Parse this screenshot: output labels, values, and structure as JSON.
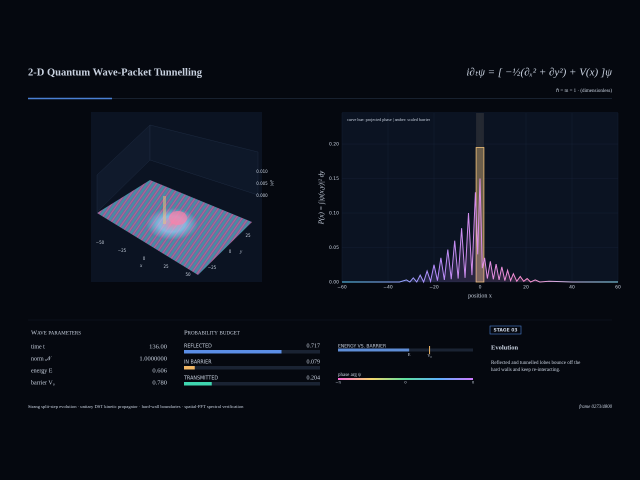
{
  "header": {
    "title": "2-D Quantum Wave-Packet Tunnelling",
    "equation": "i∂ₜψ = [ −½(∂ₓ² + ∂y²) + V(x) ]ψ",
    "units": "ℏ = m = 1 · (dimensionless)"
  },
  "surface": {
    "x_label": "x",
    "y_label": "y",
    "z_label": "|ψ|²",
    "x_ticks": [
      "−50",
      "−25",
      "0",
      "25",
      "50"
    ],
    "y_ticks": [
      "−25",
      "0",
      "25"
    ],
    "z_ticks": [
      "0.010",
      "0.005",
      "0.000"
    ]
  },
  "chart_data": {
    "type": "line",
    "annotation": "curve hue: projected phase  |  amber: scaled barrier",
    "y_label": "P(x) = ∫|ψ(x,y)|² dy",
    "x_label": "position x",
    "x": [
      -60,
      -35,
      -32,
      -30.5,
      -29,
      -27.5,
      -26,
      -24.5,
      -23,
      -21.5,
      -20,
      -18.5,
      -17,
      -15.5,
      -14,
      -12.5,
      -11,
      -9.5,
      -8,
      -6.5,
      -5,
      -3.5,
      -2,
      -1,
      0,
      1,
      2,
      3.2,
      4.5,
      5.8,
      7,
      8.3,
      9.5,
      10.8,
      12,
      13.3,
      14.5,
      16,
      17.5,
      19,
      20.5,
      22,
      24,
      26,
      30,
      40,
      60
    ],
    "values": [
      0,
      0,
      0.003,
      0,
      0.006,
      0,
      0.01,
      0,
      0.016,
      0.001,
      0.025,
      0.002,
      0.035,
      0.003,
      0.047,
      0.004,
      0.06,
      0.005,
      0.078,
      0.006,
      0.1,
      0.01,
      0.13,
      0.04,
      0.15,
      0.02,
      0.035,
      0.005,
      0.03,
      0.004,
      0.026,
      0.003,
      0.022,
      0.002,
      0.017,
      0.002,
      0.012,
      0.001,
      0.008,
      0.001,
      0.005,
      0,
      0.003,
      0,
      0.001,
      0,
      0
    ],
    "colors": [
      "#5fd3ff",
      "#b58cff",
      "#ff8fd0",
      "#8fe6ff"
    ],
    "barrier_x": [
      -1.7,
      1.7
    ],
    "barrier_height": 0.195,
    "barrier_color": "#f2c27a",
    "xlim": [
      -60,
      60
    ],
    "ylim": [
      0,
      0.245
    ],
    "xticks": [
      {
        "value": -60,
        "label": "−60"
      },
      {
        "value": -40,
        "label": "−40"
      },
      {
        "value": -20,
        "label": "−20"
      },
      0,
      20,
      40,
      60
    ],
    "yticks": [
      {
        "value": 0,
        "label": "0.00"
      },
      {
        "value": 0.05,
        "label": "0.05"
      },
      {
        "value": 0.1,
        "label": "0.10"
      },
      {
        "value": 0.15,
        "label": "0.15"
      },
      {
        "value": 0.2,
        "label": "0.20"
      }
    ],
    "grid": true
  },
  "parameters": {
    "title": "Wave parameters",
    "rows": [
      {
        "label": "time t",
        "value": {
          "value": 136,
          "label": "136.00"
        }
      },
      {
        "label": "norm 𝒩",
        "value": {
          "value": 1,
          "label": "1.0000000"
        }
      },
      {
        "label": "energy E",
        "value": 0.606,
        "color": "#6fa8ff"
      },
      {
        "label": "barrier V₀",
        "value": {
          "value": 0.78,
          "label": "0.780"
        },
        "color": "#f2b866"
      }
    ]
  },
  "budget": {
    "title": "Probability budget",
    "rows": [
      {
        "label": "REFLECTED",
        "value": 0.717,
        "color": "#5b8ee6"
      },
      {
        "label": "IN BARRIER",
        "value": 0.079,
        "color": "#f2b866"
      },
      {
        "label": "TRANSMITTED",
        "value": 0.204,
        "color": "#3fd6b0"
      }
    ]
  },
  "energy_gauge": {
    "label": "ENERGY VS. BARRIER",
    "xlim": [
      0,
      1.15
    ],
    "e_label": "E",
    "v_label": "V₀"
  },
  "phase": {
    "label": "phase arg ψ",
    "ticks": [
      "−π",
      "0",
      "π"
    ]
  },
  "stage": {
    "tag": "STAGE 03",
    "title": "Evolution",
    "lines": [
      "Reflected and tunnelled lobes bounce off the",
      "hard walls and keep re-interacting."
    ]
  },
  "footer": {
    "left": "Strang split-step evolution  ·  unitary DST kinetic propagator  ·  hard-wall boundaries  ·  spatial-FFT spectral verification",
    "right": "frame 0273/4800"
  }
}
